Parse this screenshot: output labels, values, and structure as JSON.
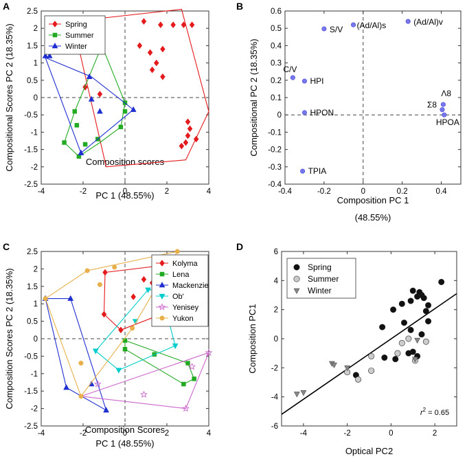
{
  "chart_data": [
    {
      "panel": "A",
      "type": "scatter",
      "title": "",
      "xlabel": "Composition scores",
      "xlabel2": "PC 1 (48.55%)",
      "ylabel": "Compositional Scores PC 2 (18.35%)",
      "xlim": [
        -4,
        4
      ],
      "ylim": [
        -2.5,
        2.5
      ],
      "xticks": [
        "-4",
        "-2",
        "0",
        "2",
        "4"
      ],
      "yticks": [
        "-2.5",
        "-2",
        "-1.5",
        "-1",
        "-0.5",
        "0",
        "0.5",
        "1",
        "1.5",
        "2",
        "2.5"
      ],
      "legend": "top-left",
      "series": [
        {
          "name": "Spring",
          "color": "#e41a1c",
          "marker": "diamond",
          "points": [
            [
              0.9,
              2.2
            ],
            [
              1.7,
              2.1
            ],
            [
              2.3,
              2.1
            ],
            [
              2.8,
              2.1
            ],
            [
              3.2,
              2.1
            ],
            [
              0.7,
              1.5
            ],
            [
              1.2,
              1.3
            ],
            [
              1.8,
              1.4
            ],
            [
              1.5,
              1.0
            ],
            [
              1.3,
              0.8
            ],
            [
              1.8,
              0.6
            ],
            [
              3.0,
              -0.7
            ],
            [
              3.1,
              -0.9
            ],
            [
              3.0,
              -1.1
            ],
            [
              2.9,
              -1.3
            ],
            [
              3.4,
              -1.2
            ],
            [
              2.7,
              -1.4
            ],
            [
              -1.9,
              0.3
            ],
            [
              -1.2,
              0.1
            ]
          ],
          "hull": [
            [
              -2.5,
              2.2
            ],
            [
              2.7,
              2.55
            ],
            [
              4,
              -0.4
            ],
            [
              2.9,
              -1.8
            ],
            [
              -0.9,
              -2.0
            ],
            [
              -2.5,
              2.2
            ]
          ]
        },
        {
          "name": "Summer",
          "color": "#22aa22",
          "marker": "square",
          "points": [
            [
              -1.1,
              1.5
            ],
            [
              0,
              -0.15
            ],
            [
              -2.9,
              -1.3
            ],
            [
              -2.2,
              -1.7
            ],
            [
              -1.3,
              -1.2
            ],
            [
              -2.4,
              -0.4
            ],
            [
              -2.3,
              -0.8
            ],
            [
              -1.9,
              -1.35
            ],
            [
              0,
              -0.4
            ],
            [
              -0.2,
              -0.85
            ]
          ],
          "hull": [
            [
              -1.1,
              1.5
            ],
            [
              0,
              -0.15
            ],
            [
              -0.2,
              -0.85
            ],
            [
              -1.2,
              -1.3
            ],
            [
              -2.2,
              -1.7
            ],
            [
              -2.9,
              -1.3
            ],
            [
              -2.4,
              -0.4
            ],
            [
              -1.1,
              1.5
            ]
          ]
        },
        {
          "name": "Winter",
          "color": "#1f2fd0",
          "marker": "triangle",
          "points": [
            [
              -3.6,
              1.2
            ],
            [
              -3.8,
              1.2
            ],
            [
              -1.7,
              0.6
            ],
            [
              -1.6,
              -0.05
            ],
            [
              -2.1,
              -1.6
            ],
            [
              -1.2,
              -0.4
            ],
            [
              0.4,
              -0.35
            ]
          ],
          "hull": [
            [
              -3.8,
              1.15
            ],
            [
              -1.6,
              0.6
            ],
            [
              0.4,
              -0.35
            ],
            [
              -2.1,
              -1.6
            ],
            [
              -3.8,
              1.15
            ]
          ]
        }
      ]
    },
    {
      "panel": "B",
      "type": "scatter",
      "title": "",
      "xlabel": "Composition PC 1",
      "xlabel2": "(48.55%)",
      "ylabel": "Compositional PC 2 (18.35%)",
      "xlim": [
        -0.4,
        0.5
      ],
      "ylim": [
        -0.4,
        0.6
      ],
      "xticks": [
        "-0.4",
        "-0.2",
        "0",
        "0.2",
        "0.4"
      ],
      "yticks": [
        "-0.4",
        "-0.3",
        "-0.2",
        "-0.1",
        "0",
        "0.1",
        "0.2",
        "0.3",
        "0.4",
        "0.5",
        "0.6"
      ],
      "color": "#7777ee",
      "points": [
        {
          "x": -0.36,
          "y": 0.215,
          "label": "C/V"
        },
        {
          "x": -0.3,
          "y": 0.195,
          "label": "HPI"
        },
        {
          "x": -0.2,
          "y": 0.497,
          "label": "S/V"
        },
        {
          "x": -0.05,
          "y": 0.52,
          "label": "(Ad/Al)s"
        },
        {
          "x": 0.23,
          "y": 0.54,
          "label": "(Ad/Al)v"
        },
        {
          "x": -0.3,
          "y": 0.013,
          "label": "HPON"
        },
        {
          "x": -0.31,
          "y": -0.325,
          "label": "TPIA"
        },
        {
          "x": 0.41,
          "y": 0.06,
          "label": "Λ8"
        },
        {
          "x": 0.405,
          "y": 0.03,
          "label": "Σ8"
        },
        {
          "x": 0.415,
          "y": 0.0,
          "label": "HPOA"
        }
      ]
    },
    {
      "panel": "C",
      "type": "scatter",
      "title": "",
      "xlabel": "Composition Scores",
      "xlabel2": "PC 1 (48.55%)",
      "ylabel": "Composition Scores PC 2 (18.35%)",
      "xlim": [
        -4,
        4
      ],
      "ylim": [
        -2.5,
        2.5
      ],
      "xticks": [
        "-4",
        "-2",
        "0",
        "2",
        "4"
      ],
      "yticks": [
        "-2.5",
        "-2",
        "-1.5",
        "-1",
        "-0.5",
        "0",
        "0.5",
        "1",
        "1.5",
        "2",
        "2.5"
      ],
      "legend": "top-right",
      "series": [
        {
          "name": "Kolyma",
          "color": "#e41a1c",
          "marker": "diamond",
          "hull": [
            [
              -1.0,
              0.7
            ],
            [
              -0.95,
              1.9
            ],
            [
              1.8,
              2.1
            ],
            [
              2.6,
              0.9
            ],
            [
              -0.2,
              0.25
            ],
            [
              -1.0,
              0.7
            ]
          ],
          "points": [
            [
              -0.95,
              1.9
            ],
            [
              1.8,
              2.1
            ],
            [
              0.9,
              1.7
            ],
            [
              2.6,
              0.9
            ],
            [
              -0.2,
              0.25
            ],
            [
              -1.0,
              0.7
            ],
            [
              0.4,
              1.2
            ],
            [
              1.3,
              1.6
            ],
            [
              2.0,
              1.2
            ]
          ]
        },
        {
          "name": "Lena",
          "color": "#22aa22",
          "marker": "square",
          "hull": [
            [
              0,
              -0.05
            ],
            [
              3.0,
              -0.7
            ],
            [
              3.3,
              -1.15
            ],
            [
              2.8,
              -1.3
            ],
            [
              0,
              -0.3
            ],
            [
              0,
              -0.05
            ]
          ],
          "points": [
            [
              0,
              -0.05
            ],
            [
              3.0,
              -0.7
            ],
            [
              3.3,
              -1.15
            ],
            [
              2.8,
              -1.3
            ],
            [
              0,
              -0.3
            ],
            [
              1.4,
              -0.45
            ]
          ]
        },
        {
          "name": "Mackenzie",
          "color": "#1f2fd0",
          "marker": "triangle",
          "hull": [
            [
              -3.8,
              1.15
            ],
            [
              -2.6,
              1.15
            ],
            [
              -0.9,
              -2.05
            ],
            [
              -2.8,
              -1.4
            ],
            [
              -3.8,
              1.15
            ]
          ],
          "points": [
            [
              -3.8,
              1.15
            ],
            [
              -2.6,
              1.15
            ],
            [
              -0.9,
              -2.05
            ],
            [
              -2.8,
              -1.4
            ],
            [
              -1.6,
              -1.3
            ]
          ]
        },
        {
          "name": "Ob'",
          "color": "#00cccc",
          "marker": "triangle-down",
          "hull": [
            [
              -1.4,
              -0.35
            ],
            [
              1.1,
              1.4
            ],
            [
              1.7,
              1.4
            ],
            [
              2.4,
              -0.2
            ],
            [
              -0.3,
              -0.9
            ],
            [
              -1.4,
              -0.35
            ]
          ],
          "points": [
            [
              -1.4,
              -0.35
            ],
            [
              1.1,
              1.4
            ],
            [
              1.7,
              1.4
            ],
            [
              2.4,
              -0.2
            ],
            [
              -0.3,
              -0.9
            ],
            [
              0.5,
              0.5
            ]
          ]
        },
        {
          "name": "Yenisey",
          "color": "#cc66cc",
          "marker": "star",
          "hull": [
            [
              -2.1,
              -1.65
            ],
            [
              4,
              -0.4
            ],
            [
              2.9,
              -2.0
            ],
            [
              -2.1,
              -1.65
            ]
          ],
          "points": [
            [
              4,
              -0.4
            ],
            [
              3.2,
              -0.8
            ],
            [
              2.9,
              -2.0
            ],
            [
              -1.3,
              -1.3
            ],
            [
              0.9,
              -1.6
            ]
          ]
        },
        {
          "name": "Yukon",
          "color": "#e8b04a",
          "marker": "circle",
          "hull": [
            [
              -2.1,
              -1.65
            ],
            [
              -3.8,
              1.15
            ],
            [
              -1.8,
              1.95
            ],
            [
              2.5,
              2.5
            ],
            [
              0.35,
              0.3
            ],
            [
              -2.1,
              -1.65
            ]
          ],
          "points": [
            [
              -2.1,
              -1.65
            ],
            [
              -3.8,
              1.15
            ],
            [
              -1.8,
              1.95
            ],
            [
              2.5,
              2.5
            ],
            [
              0.35,
              0.3
            ],
            [
              -2.1,
              -0.7
            ],
            [
              -1.2,
              1.55
            ],
            [
              -0.5,
              2.05
            ]
          ]
        }
      ]
    },
    {
      "panel": "D",
      "type": "scatter",
      "title": "",
      "xlabel": "Optical PC2",
      "ylabel": "Composition PC1",
      "xlim": [
        -5,
        3
      ],
      "ylim": [
        -6,
        6
      ],
      "xticks": [
        "-4",
        "-2",
        "0",
        "2"
      ],
      "yticks": [
        "-6",
        "-4",
        "-2",
        "0",
        "2",
        "4",
        "6"
      ],
      "legend": "top-left",
      "annotation": "r² = 0.65",
      "annotation_main": "r",
      "annotation_sup": "2",
      "annotation_rest": " = 0.65",
      "regression": {
        "x0": -5,
        "y0": -5.2,
        "x1": 3,
        "y1": 3.1
      },
      "series": [
        {
          "name": "Spring",
          "fill": "#111111",
          "marker": "circle",
          "points": [
            [
              -1.6,
              -2.5
            ],
            [
              -0.4,
              0.8
            ],
            [
              -0.3,
              -1.3
            ],
            [
              0.1,
              2.0
            ],
            [
              0.5,
              2.4
            ],
            [
              0.6,
              1.1
            ],
            [
              0.9,
              2.6
            ],
            [
              1.0,
              3.3
            ],
            [
              1.2,
              2.9
            ],
            [
              1.4,
              3.0
            ],
            [
              1.5,
              2.8
            ],
            [
              1.3,
              3.2
            ],
            [
              1.7,
              2.3
            ],
            [
              1.6,
              1.9
            ],
            [
              1.7,
              1.2
            ],
            [
              2.3,
              3.9
            ],
            [
              0.9,
              0.6
            ],
            [
              1.0,
              -0.9
            ],
            [
              1.2,
              -1.2
            ],
            [
              1.4,
              0.3
            ],
            [
              0.8,
              -1.0
            ],
            [
              0.2,
              -1.4
            ]
          ]
        },
        {
          "name": "Summer",
          "fill": "#cccccc",
          "marker": "circle",
          "points": [
            [
              -2.0,
              -2.3
            ],
            [
              -1.5,
              -2.8
            ],
            [
              -0.9,
              -2.2
            ],
            [
              -0.9,
              -1.2
            ],
            [
              0.5,
              -0.3
            ],
            [
              0.8,
              0.0
            ],
            [
              1.1,
              -1.5
            ],
            [
              1.6,
              -0.2
            ],
            [
              0.3,
              -1.0
            ]
          ]
        },
        {
          "name": "Winter",
          "fill": "#888888",
          "marker": "triangle-down",
          "points": [
            [
              -4.3,
              -3.8
            ],
            [
              -4.0,
              -3.7
            ],
            [
              -2.7,
              -1.7
            ],
            [
              -2.6,
              -1.8
            ],
            [
              -2.0,
              -2.0
            ],
            [
              1.2,
              -0.1
            ],
            [
              1.1,
              -1.4
            ]
          ]
        }
      ]
    }
  ]
}
